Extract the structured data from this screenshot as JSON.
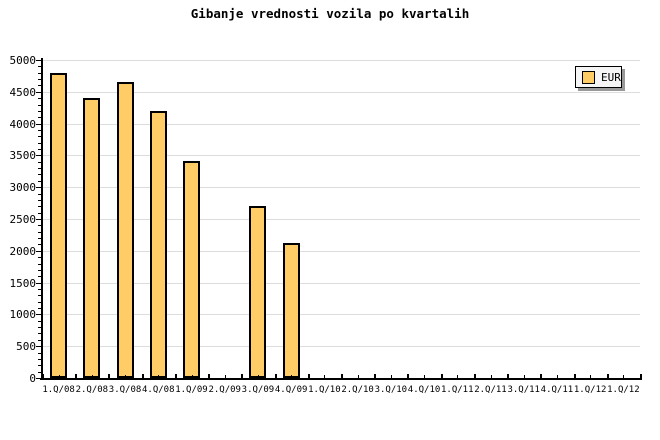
{
  "title": "Gibanje vrednosti vozila po kvartalih",
  "legend": {
    "label": "EUR"
  },
  "colors": {
    "bar_fill": "#FFCC66",
    "bar_border": "#000000",
    "grid": "#DDDDDD",
    "axis": "#000000",
    "text": "#000000",
    "legend_bg": "#F5F5F5",
    "legend_shadow": "#999999",
    "background": "#FFFFFF"
  },
  "chart_data": {
    "type": "bar",
    "title": "Gibanje vrednosti vozila po kvartalih",
    "categories": [
      "1.Q/08",
      "2.Q/08",
      "3.Q/08",
      "4.Q/08",
      "1.Q/09",
      "2.Q/09",
      "3.Q/09",
      "4.Q/09",
      "1.Q/10",
      "2.Q/10",
      "3.Q/10",
      "4.Q/10",
      "1.Q/11",
      "2.Q/11",
      "3.Q/11",
      "4.Q/11",
      "1.Q/12",
      "1.Q/12"
    ],
    "series": [
      {
        "name": "EUR",
        "values": [
          4800,
          4400,
          4650,
          4200,
          3420,
          0,
          2700,
          2120,
          0,
          0,
          0,
          0,
          0,
          0,
          0,
          0,
          0,
          0
        ]
      }
    ],
    "xlabel": "",
    "ylabel": "",
    "ylim": [
      0,
      5000
    ],
    "ytick_step": 500,
    "y_minor_step": 100,
    "grid": "horizontal-only",
    "legend_position": "top-right"
  }
}
